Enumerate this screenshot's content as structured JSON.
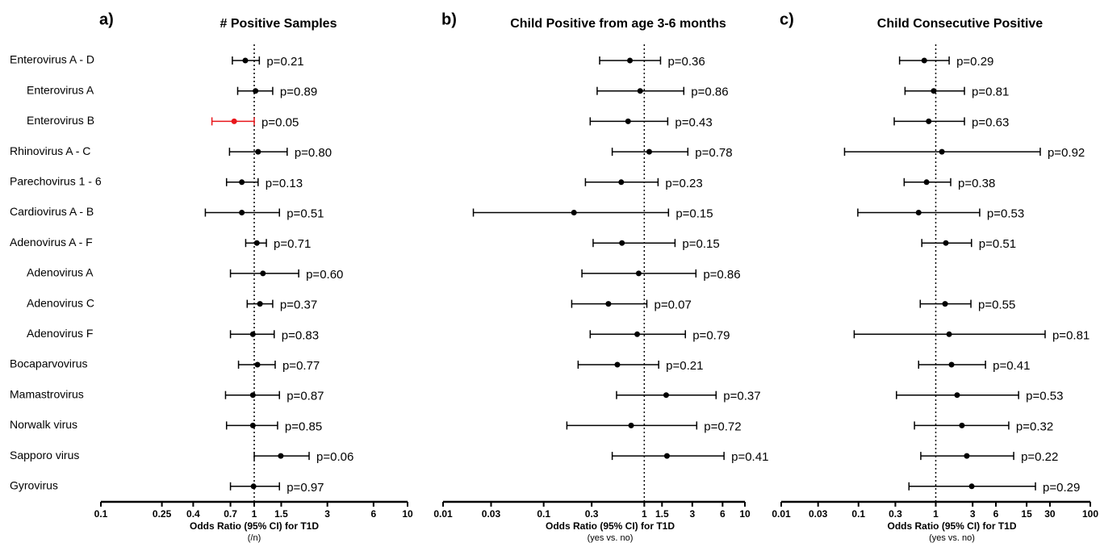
{
  "chart_data": [
    {
      "type": "forest",
      "panel": "a)",
      "title": "# Positive Samples",
      "xlabel": "Odds Ratio (95% CI) for T1D",
      "xsublabel": "(/n)",
      "xscale": "log",
      "xlim": [
        0.1,
        10
      ],
      "xticks": [
        0.1,
        0.25,
        0.4,
        0.7,
        1,
        1.5,
        3,
        6,
        10
      ],
      "reference_line": 1,
      "categories": [
        "Enterovirus A - D",
        "Enterovirus A",
        "Enterovirus B",
        "Rhinovirus A - C",
        "Parechovirus 1 - 6",
        "Cardiovirus A - B",
        "Adenovirus A - F",
        "Adenovirus A",
        "Adenovirus C",
        "Adenovirus F",
        "Bocaparvovirus",
        "Mamastrovirus",
        "Norwalk virus",
        "Sapporo virus",
        "Gyrovirus"
      ],
      "values": [
        0.875,
        1.02,
        0.74,
        1.06,
        0.83,
        0.83,
        1.04,
        1.14,
        1.09,
        0.98,
        1.05,
        0.98,
        0.98,
        1.49,
        0.99
      ],
      "lower": [
        0.72,
        0.78,
        0.53,
        0.69,
        0.66,
        0.48,
        0.88,
        0.7,
        0.9,
        0.7,
        0.79,
        0.65,
        0.66,
        1.0,
        0.7
      ],
      "upper": [
        1.08,
        1.32,
        1.0,
        1.64,
        1.06,
        1.46,
        1.2,
        1.95,
        1.32,
        1.35,
        1.37,
        1.46,
        1.42,
        2.28,
        1.46
      ],
      "p_labels": [
        "p=0.21",
        "p=0.89",
        "p=0.05",
        "p=0.80",
        "p=0.13",
        "p=0.51",
        "p=0.71",
        "p=0.60",
        "p=0.37",
        "p=0.83",
        "p=0.77",
        "p=0.87",
        "p=0.85",
        "p=0.06",
        "p=0.97"
      ],
      "point_colors": [
        "#000000",
        "#000000",
        "#e8161b",
        "#000000",
        "#000000",
        "#000000",
        "#000000",
        "#000000",
        "#000000",
        "#000000",
        "#000000",
        "#000000",
        "#000000",
        "#000000",
        "#000000"
      ]
    },
    {
      "type": "forest",
      "panel": "b)",
      "title": "Child Positive from age 3-6 months",
      "xlabel": "Odds Ratio (95% CI) for T1D",
      "xsublabel": "(yes vs. no)",
      "xscale": "log",
      "xlim": [
        0.01,
        10
      ],
      "xticks": [
        0.01,
        0.03,
        0.1,
        0.3,
        1,
        1.5,
        3,
        6,
        10
      ],
      "reference_line": 1,
      "values": [
        0.72,
        0.91,
        0.69,
        1.12,
        0.59,
        0.2,
        0.6,
        0.88,
        0.44,
        0.85,
        0.54,
        1.65,
        0.74,
        1.68,
        null
      ],
      "lower": [
        0.36,
        0.34,
        0.29,
        0.48,
        0.26,
        0.02,
        0.31,
        0.24,
        0.19,
        0.29,
        0.22,
        0.53,
        0.17,
        0.48,
        null
      ],
      "upper": [
        1.45,
        2.47,
        1.71,
        2.71,
        1.37,
        1.74,
        2.02,
        3.26,
        1.06,
        2.56,
        1.39,
        5.17,
        3.32,
        6.2,
        null
      ],
      "p_labels": [
        "p=0.36",
        "p=0.86",
        "p=0.43",
        "p=0.78",
        "p=0.23",
        "p=0.15",
        "p=0.15",
        "p=0.86",
        "p=0.07",
        "p=0.79",
        "p=0.21",
        "p=0.37",
        "p=0.72",
        "p=0.41",
        null
      ],
      "color": "#000000"
    },
    {
      "type": "forest",
      "panel": "c)",
      "title": "Child Consecutive Positive",
      "xlabel": "Odds Ratio (95% CI) for T1D",
      "xsublabel": "(yes vs. no)",
      "xscale": "log",
      "xlim": [
        0.01,
        100
      ],
      "xticks": [
        0.01,
        0.03,
        0.1,
        0.3,
        1,
        3,
        6,
        15,
        30,
        100
      ],
      "reference_line": 1,
      "values": [
        0.71,
        0.94,
        0.81,
        1.2,
        0.76,
        0.6,
        1.35,
        null,
        1.32,
        1.49,
        1.6,
        1.89,
        2.18,
        2.52,
        2.92
      ],
      "lower": [
        0.34,
        0.4,
        0.29,
        0.066,
        0.39,
        0.098,
        0.66,
        null,
        0.63,
        0.088,
        0.6,
        0.31,
        0.53,
        0.64,
        0.45
      ],
      "upper": [
        1.49,
        2.35,
        2.35,
        22.5,
        1.56,
        3.7,
        2.9,
        null,
        2.85,
        26.0,
        4.4,
        11.8,
        8.8,
        10.2,
        19.5
      ],
      "p_labels": [
        "p=0.29",
        "p=0.81",
        "p=0.63",
        "p=0.92",
        "p=0.38",
        "p=0.53",
        "p=0.51",
        null,
        "p=0.55",
        "p=0.81",
        "p=0.41",
        "p=0.53",
        "p=0.32",
        "p=0.22",
        "p=0.29"
      ],
      "color": "#000000"
    }
  ]
}
